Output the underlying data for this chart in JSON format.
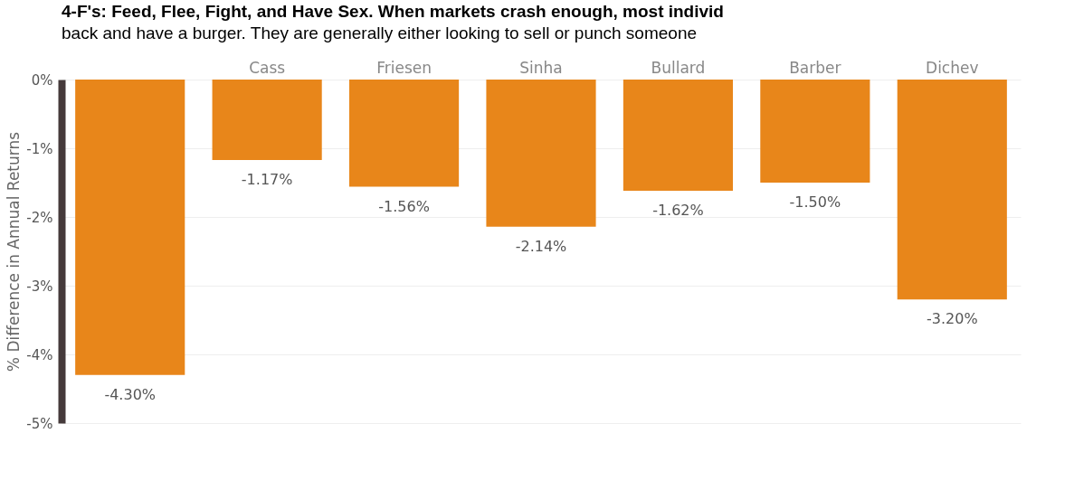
{
  "chart_data": {
    "type": "bar",
    "annotations": [
      "4-F's: Feed, Flee, Fight, and Have Sex. When markets crash enough, most individ",
      "back and have a burger. They are generally either looking to sell or punch someone"
    ],
    "ylabel": "% Difference in Annual Returns",
    "categories": [
      null,
      "Cass",
      "Friesen",
      "Sinha",
      "Bullard",
      "Barber",
      "Dichev"
    ],
    "values": [
      -4.3,
      -1.17,
      -1.56,
      -2.14,
      -1.62,
      -1.5,
      -3.2
    ],
    "value_labels": [
      "-4.30%",
      "-1.17%",
      "-1.56%",
      "-2.14%",
      "-1.62%",
      "-1.50%",
      "-3.20%"
    ],
    "color": "#e8861a",
    "ylim": [
      -5,
      0
    ],
    "yticks": [
      {
        "value": 0,
        "label": "0%"
      },
      {
        "value": -1,
        "label": "-1%"
      },
      {
        "value": -2,
        "label": "-2%"
      },
      {
        "value": -3,
        "label": "-3%"
      },
      {
        "value": -4,
        "label": "-4%"
      },
      {
        "value": -5,
        "label": "-5%"
      }
    ],
    "grid": "y"
  }
}
